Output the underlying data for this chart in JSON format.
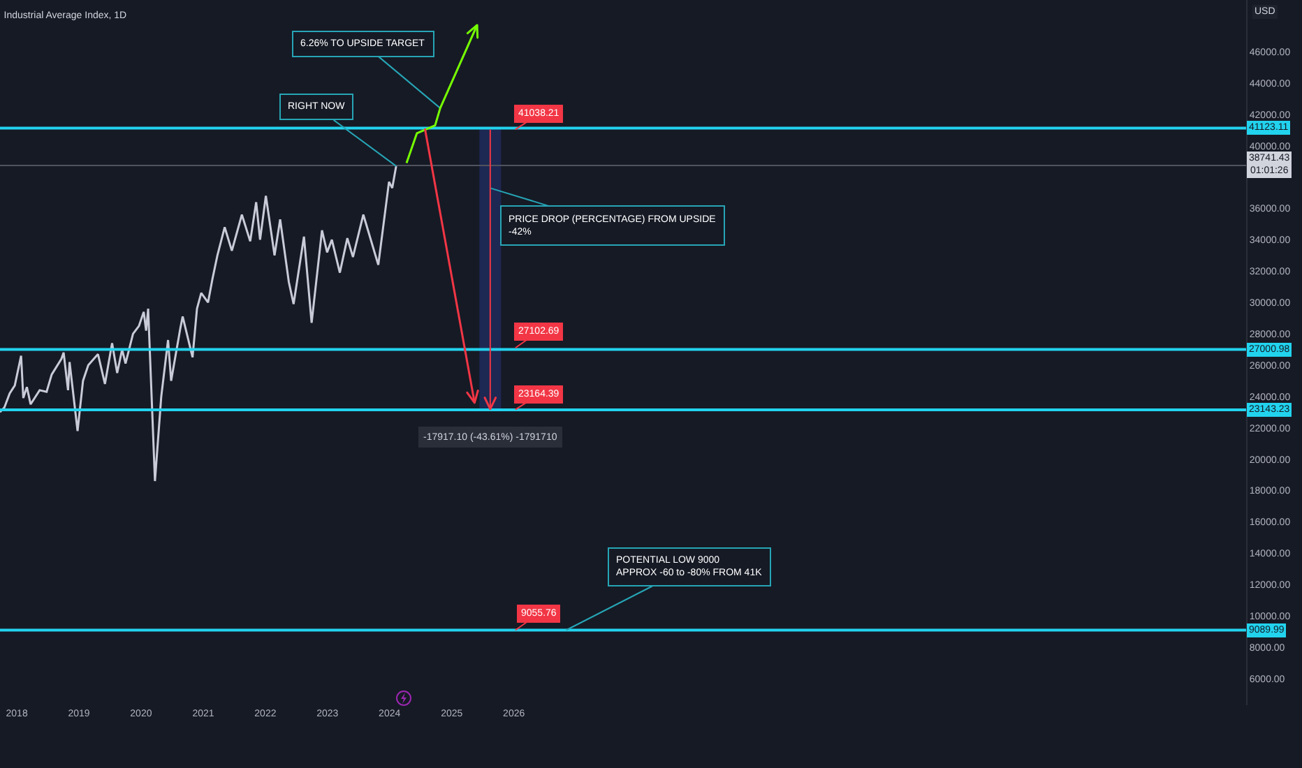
{
  "chart_data": {
    "type": "line",
    "title": "Industrial Average Index, 1D",
    "xlim": [
      "2017-09-24",
      "2037-10-15"
    ],
    "xticks": [
      "2018",
      "2019",
      "2020",
      "2021",
      "2022",
      "2023",
      "2024",
      "2025",
      "2026"
    ],
    "ylim": [
      4300,
      49300
    ],
    "yticks": [
      {
        "value": 6000,
        "label": "6000.00"
      },
      {
        "value": 8000,
        "label": "8000.00"
      },
      {
        "value": 10000,
        "label": "10000.00"
      },
      {
        "value": 12000,
        "label": "12000.00"
      },
      {
        "value": 14000,
        "label": "14000.00"
      },
      {
        "value": 16000,
        "label": "16000.00"
      },
      {
        "value": 18000,
        "label": "18000.00"
      },
      {
        "value": 20000,
        "label": "20000.00"
      },
      {
        "value": 22000,
        "label": "22000.00"
      },
      {
        "value": 24000,
        "label": "24000.00"
      },
      {
        "value": 26000,
        "label": "26000.00"
      },
      {
        "value": 28000,
        "label": "28000.00"
      },
      {
        "value": 30000,
        "label": "30000.00"
      },
      {
        "value": 32000,
        "label": "32000.00"
      },
      {
        "value": 34000,
        "label": "34000.00"
      },
      {
        "value": 36000,
        "label": "36000.00"
      },
      {
        "value": 40000,
        "label": "40000.00"
      },
      {
        "value": 42000,
        "label": "42000.00"
      },
      {
        "value": 44000,
        "label": "44000.00"
      },
      {
        "value": 46000,
        "label": "46000.00"
      }
    ],
    "grid": false,
    "line_style": "solid",
    "series": [
      {
        "color": "#c9cbd9",
        "x": [
          "2017-09-24",
          "2017-10-20",
          "2017-11-20",
          "2017-12-20",
          "2018-01-26",
          "2018-02-08",
          "2018-03-01",
          "2018-03-23",
          "2018-05-15",
          "2018-06-25",
          "2018-07-25",
          "2018-09-20",
          "2018-10-03",
          "2018-10-29",
          "2018-11-07",
          "2018-12-24",
          "2019-01-25",
          "2019-02-25",
          "2019-04-23",
          "2019-06-03",
          "2019-07-15",
          "2019-08-14",
          "2019-09-12",
          "2019-10-02",
          "2019-11-15",
          "2019-12-20",
          "2020-01-17",
          "2020-01-31",
          "2020-02-12",
          "2020-03-23",
          "2020-04-29",
          "2020-06-08",
          "2020-06-26",
          "2020-08-20",
          "2020-09-02",
          "2020-10-30",
          "2020-11-25",
          "2020-12-20",
          "2021-01-29",
          "2021-02-24",
          "2021-03-25",
          "2021-05-07",
          "2021-06-18",
          "2021-08-16",
          "2021-10-04",
          "2021-11-08",
          "2021-12-01",
          "2022-01-04",
          "2022-02-24",
          "2022-03-29",
          "2022-05-19",
          "2022-06-16",
          "2022-08-16",
          "2022-09-30",
          "2022-11-30",
          "2022-12-30",
          "2023-01-27",
          "2023-03-15",
          "2023-04-28",
          "2023-05-31",
          "2023-07-31",
          "2023-10-27",
          "2023-12-29",
          "2024-01-17",
          "2024-02-09"
        ],
        "values": [
          23000,
          23300,
          24200,
          24700,
          26600,
          23900,
          24600,
          23500,
          24400,
          24300,
          25400,
          26400,
          26800,
          24400,
          26200,
          21800,
          25000,
          26000,
          26700,
          24800,
          27400,
          25500,
          27000,
          26100,
          28000,
          28500,
          29400,
          28200,
          29600,
          18600,
          24000,
          27600,
          25000,
          28400,
          29100,
          26500,
          29600,
          30600,
          30000,
          31500,
          33000,
          34800,
          33300,
          35600,
          33900,
          36400,
          34000,
          36800,
          33000,
          35300,
          31300,
          29900,
          34200,
          28700,
          34600,
          33200,
          34000,
          31900,
          34100,
          32900,
          35600,
          32400,
          37700,
          37300,
          38700
        ]
      },
      {
        "type": "bar",
        "color": "#1f2c5c",
        "x": [
          "2025-08-15"
        ],
        "base": [
          23200
        ],
        "values": [
          17900
        ]
      }
    ],
    "ref_lines": [
      {
        "axis": "y",
        "value": 41123.11,
        "label": "41123.11",
        "color": "#22d3ee"
      },
      {
        "axis": "y",
        "value": 27000.98,
        "label": "27000.98",
        "color": "#22d3ee"
      },
      {
        "axis": "y",
        "value": 23143.23,
        "label": "23143.23",
        "color": "#22d3ee"
      },
      {
        "axis": "y",
        "value": 9089.99,
        "label": "9089.99",
        "color": "#22d3ee"
      },
      {
        "axis": "y",
        "value": 38741.43,
        "label": "38741.43\n01:01:26",
        "color": "#50535e"
      }
    ],
    "annotations": [
      {
        "text": "RIGHT NOW",
        "x": "2024-02-09",
        "y": 38700
      },
      "6.26% TO UPSIDE TARGET",
      {
        "text": "41038.21",
        "x": "2026-01-10",
        "y": 41038.21
      },
      {
        "text": "27102.69",
        "x": "2026-01-10",
        "y": 27102.69
      },
      {
        "text": "23164.39",
        "x": "2026-01-10",
        "y": 23164.39
      },
      "PRICE DROP (PERCENTAGE) FROM UPSIDE\n-42%",
      {
        "text": "-17917.10 (-43.61%) -1791710",
        "x": "2025-08-15",
        "y": 23200
      },
      {
        "text": "POTENTIAL LOW 9000\nAPPROX -60 to -80% FROM 41K",
        "x": "2026-11-05",
        "y": 9089.99
      },
      {
        "text": "9055.76",
        "x": "2026-01-10",
        "y": 9089.99
      },
      "USD"
    ]
  }
}
